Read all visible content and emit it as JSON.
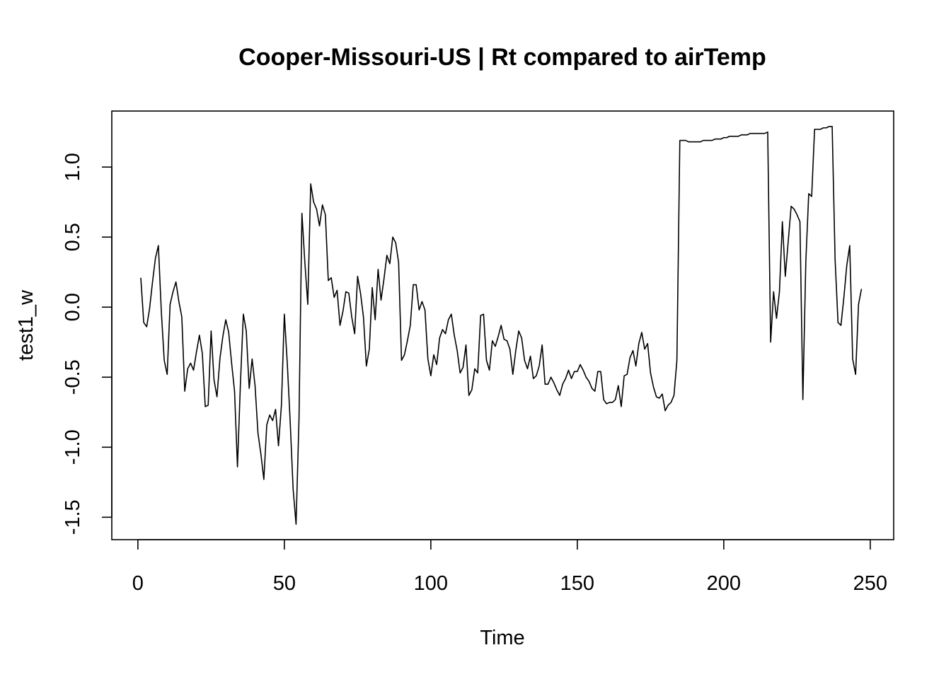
{
  "chart_data": {
    "type": "line",
    "title": "Cooper-Missouri-US | Rt compared to airTemp",
    "xlabel": "Time",
    "ylabel": "test1_w",
    "xlim": [
      -8.9,
      258
    ],
    "ylim": [
      -1.66,
      1.4
    ],
    "x_ticks": [
      0,
      50,
      100,
      150,
      200,
      250
    ],
    "y_ticks": [
      -1.5,
      -1.0,
      -0.5,
      0.0,
      0.5,
      1.0
    ],
    "x_tick_labels": [
      "0",
      "50",
      "100",
      "150",
      "200",
      "250"
    ],
    "y_tick_labels": [
      "-1.5",
      "-1.0",
      "-0.5",
      "0.0",
      "0.5",
      "1.0"
    ],
    "grid": false,
    "legend": "none",
    "line_color": "#000000",
    "x_start": 1,
    "x_step": 1,
    "values": [
      0.21,
      -0.11,
      -0.14,
      -0.01,
      0.18,
      0.35,
      0.44,
      -0.03,
      -0.38,
      -0.48,
      0.02,
      0.11,
      0.18,
      0.04,
      -0.07,
      -0.6,
      -0.44,
      -0.4,
      -0.45,
      -0.32,
      -0.2,
      -0.33,
      -0.71,
      -0.7,
      -0.17,
      -0.52,
      -0.64,
      -0.37,
      -0.21,
      -0.09,
      -0.18,
      -0.4,
      -0.6,
      -1.14,
      -0.55,
      -0.05,
      -0.17,
      -0.58,
      -0.37,
      -0.56,
      -0.9,
      -1.05,
      -1.23,
      -0.84,
      -0.77,
      -0.81,
      -0.73,
      -0.99,
      -0.7,
      -0.05,
      -0.4,
      -0.82,
      -1.3,
      -1.55,
      -0.8,
      0.67,
      0.32,
      0.02,
      0.88,
      0.75,
      0.7,
      0.58,
      0.73,
      0.66,
      0.19,
      0.21,
      0.07,
      0.12,
      -0.13,
      -0.03,
      0.11,
      0.1,
      -0.07,
      -0.19,
      0.22,
      0.1,
      -0.07,
      -0.42,
      -0.3,
      0.14,
      -0.09,
      0.27,
      0.05,
      0.2,
      0.37,
      0.31,
      0.5,
      0.46,
      0.32,
      -0.38,
      -0.34,
      -0.24,
      -0.13,
      0.16,
      0.16,
      -0.02,
      0.04,
      -0.02,
      -0.37,
      -0.49,
      -0.34,
      -0.41,
      -0.22,
      -0.16,
      -0.19,
      -0.09,
      -0.05,
      -0.2,
      -0.31,
      -0.47,
      -0.43,
      -0.27,
      -0.63,
      -0.59,
      -0.44,
      -0.47,
      -0.06,
      -0.05,
      -0.38,
      -0.45,
      -0.24,
      -0.28,
      -0.21,
      -0.13,
      -0.23,
      -0.24,
      -0.3,
      -0.48,
      -0.31,
      -0.17,
      -0.22,
      -0.38,
      -0.44,
      -0.35,
      -0.51,
      -0.49,
      -0.42,
      -0.27,
      -0.55,
      -0.55,
      -0.5,
      -0.54,
      -0.59,
      -0.63,
      -0.55,
      -0.51,
      -0.45,
      -0.51,
      -0.46,
      -0.46,
      -0.41,
      -0.45,
      -0.5,
      -0.53,
      -0.58,
      -0.6,
      -0.46,
      -0.46,
      -0.66,
      -0.69,
      -0.68,
      -0.68,
      -0.66,
      -0.56,
      -0.71,
      -0.49,
      -0.48,
      -0.36,
      -0.31,
      -0.42,
      -0.26,
      -0.18,
      -0.3,
      -0.26,
      -0.47,
      -0.57,
      -0.64,
      -0.65,
      -0.62,
      -0.74,
      -0.7,
      -0.68,
      -0.63,
      -0.38,
      1.19,
      1.19,
      1.19,
      1.18,
      1.18,
      1.18,
      1.18,
      1.18,
      1.19,
      1.19,
      1.19,
      1.19,
      1.2,
      1.2,
      1.2,
      1.21,
      1.21,
      1.22,
      1.22,
      1.22,
      1.22,
      1.23,
      1.23,
      1.23,
      1.24,
      1.24,
      1.24,
      1.24,
      1.24,
      1.24,
      1.25,
      -0.25,
      0.11,
      -0.08,
      0.11,
      0.61,
      0.22,
      0.47,
      0.72,
      0.7,
      0.66,
      0.61,
      -0.66,
      0.32,
      0.81,
      0.79,
      1.27,
      1.27,
      1.27,
      1.28,
      1.28,
      1.29,
      1.29,
      0.34,
      -0.11,
      -0.13,
      0.07,
      0.3,
      0.44,
      -0.37,
      -0.48,
      0.02,
      0.13
    ]
  }
}
